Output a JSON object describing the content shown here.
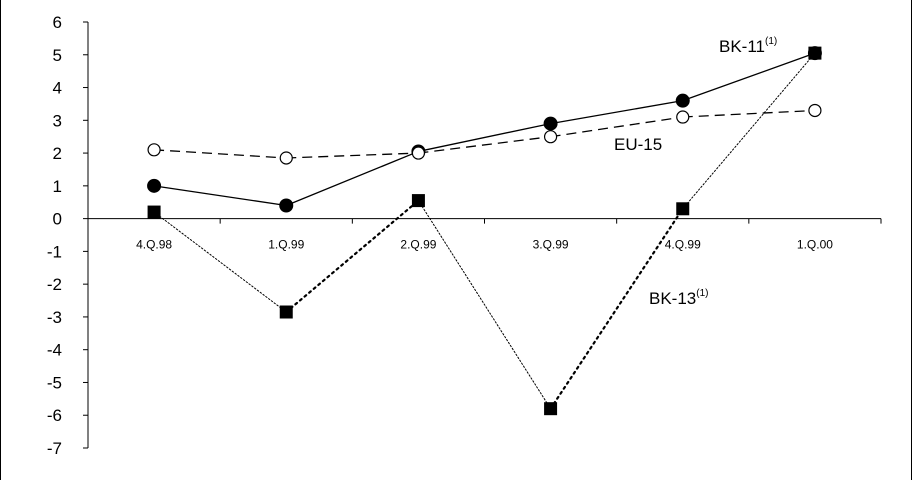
{
  "chart_data": {
    "type": "line",
    "categories": [
      "4.Q.98",
      "1.Q.99",
      "2.Q.99",
      "3.Q.99",
      "4.Q.99",
      "1.Q.00"
    ],
    "ylim": [
      -7,
      6
    ],
    "yticks": [
      "6",
      "5",
      "4",
      "3",
      "2",
      "1",
      "0",
      "-1",
      "-2",
      "-3",
      "-4",
      "-5",
      "-6",
      "-7"
    ],
    "grid": false,
    "series": [
      {
        "name": "BK-11",
        "note": "(1)",
        "values": [
          1.0,
          0.4,
          2.05,
          2.9,
          3.6,
          5.05
        ],
        "line": "solid",
        "marker": "filled-circle",
        "color": "#000000"
      },
      {
        "name": "EU-15",
        "note": "",
        "values": [
          2.1,
          1.85,
          2.0,
          2.5,
          3.1,
          3.3
        ],
        "line": "dashed",
        "marker": "open-circle",
        "color": "#000000"
      },
      {
        "name": "BK-13",
        "note": "(1)",
        "values": [
          0.2,
          -2.85,
          0.55,
          -5.8,
          0.3,
          5.05
        ],
        "line": "dotted",
        "marker": "filled-square",
        "color": "#000000"
      }
    ]
  }
}
